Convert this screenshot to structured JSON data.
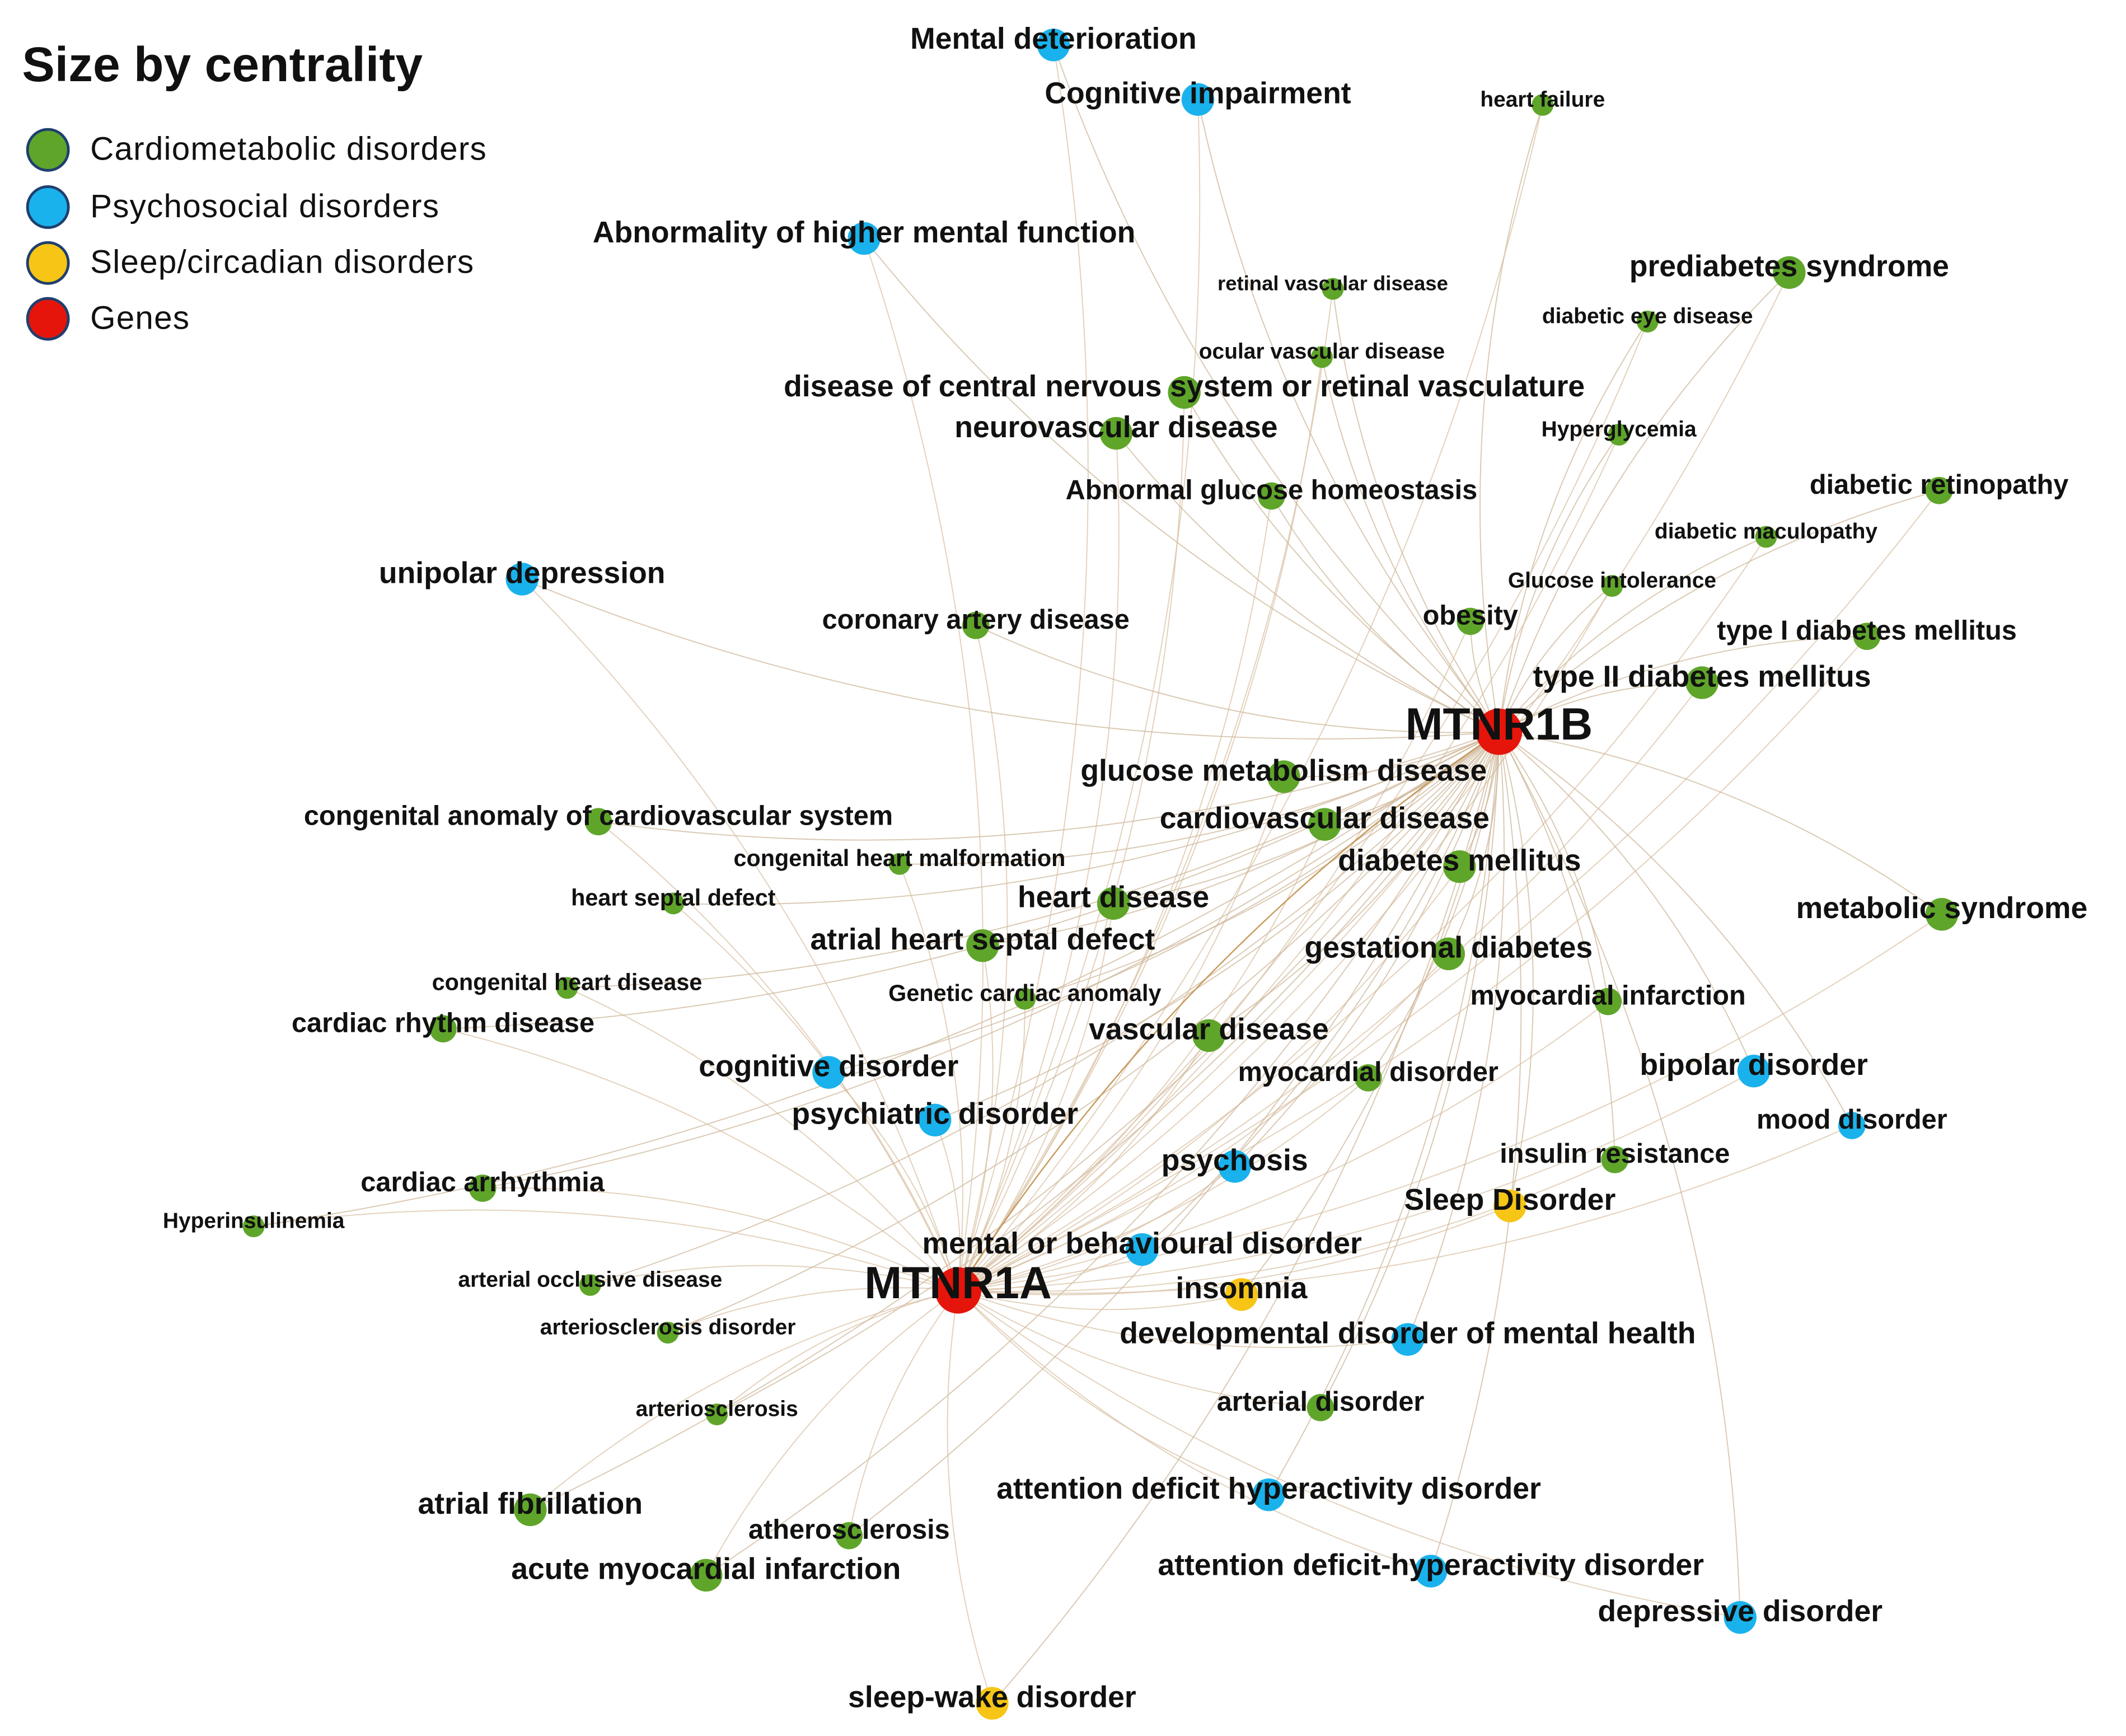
{
  "title": "Size by centrality",
  "groups": [
    {
      "label": "Cardiometabolic disorders",
      "color": "#5fa52a",
      "nodes": [
        "heart failure",
        "retinal vascular disease",
        "prediabetes syndrome",
        "diabetic eye disease",
        "ocular vascular disease",
        "disease of central nervous system or retinal vasculature",
        "neurovascular disease",
        "Hyperglycemia",
        "Abnormal glucose homeostasis",
        "diabetic retinopathy",
        "diabetic maculopathy",
        "Glucose intolerance",
        "obesity",
        "coronary artery disease",
        "type I diabetes mellitus",
        "type II diabetes mellitus",
        "glucose metabolism disease",
        "congenital anomaly of cardiovascular system",
        "cardiovascular disease",
        "congenital heart malformation",
        "diabetes mellitus",
        "heart septal defect",
        "heart disease",
        "metabolic syndrome",
        "atrial heart septal defect",
        "gestational diabetes",
        "congenital heart disease",
        "Genetic cardiac anomaly",
        "myocardial infarction",
        "cardiac rhythm disease",
        "vascular disease",
        "myocardial disorder",
        "insulin resistance",
        "cardiac arrhythmia",
        "Hyperinsulinemia",
        "arterial occlusive disease",
        "arteriosclerosis disorder",
        "arteriosclerosis",
        "arterial disorder",
        "atrial fibrillation",
        "atherosclerosis",
        "acute myocardial infarction"
      ]
    },
    {
      "label": "Psychosocial disorders",
      "color": "#1ab2ec",
      "nodes": [
        "Mental deterioration",
        "Cognitive impairment",
        "Abnormality of higher mental function",
        "unipolar depression",
        "cognitive disorder",
        "psychiatric disorder",
        "psychosis",
        "bipolar disorder",
        "mood disorder",
        "mental or behavioural disorder",
        "developmental disorder of mental health",
        "attention deficit hyperactivity disorder",
        "attention deficit-hyperactivity disorder",
        "depressive disorder"
      ]
    },
    {
      "label": "Sleep/circadian disorders",
      "color": "#f6c516",
      "nodes": [
        "Sleep Disorder",
        "insomnia",
        "sleep-wake disorder"
      ]
    },
    {
      "label": "Genes",
      "color": "#e5150b",
      "nodes": [
        "MTNR1B",
        "MTNR1A"
      ]
    }
  ]
}
